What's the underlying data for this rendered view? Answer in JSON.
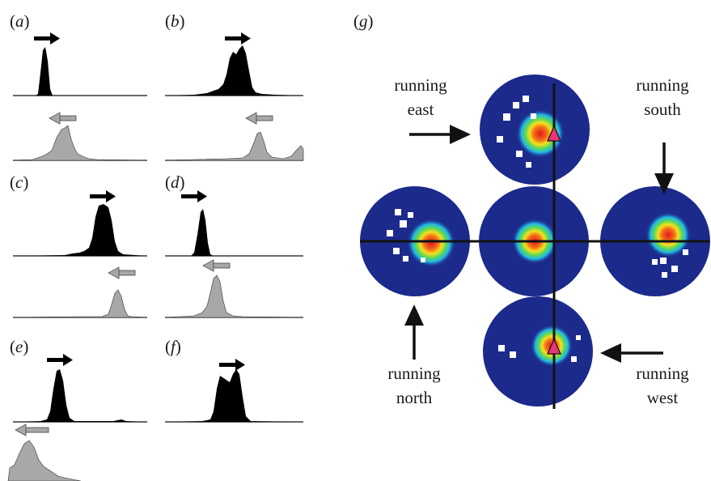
{
  "panels": {
    "a": {
      "open": "(",
      "letter": "a",
      "close": ")"
    },
    "b": {
      "open": "(",
      "letter": "b",
      "close": ")"
    },
    "c": {
      "open": "(",
      "letter": "c",
      "close": ")"
    },
    "d": {
      "open": "(",
      "letter": "d",
      "close": ")"
    },
    "e": {
      "open": "(",
      "letter": "e",
      "close": ")"
    },
    "f": {
      "open": "(",
      "letter": "f",
      "close": ")"
    },
    "g": {
      "open": "(",
      "letter": "g",
      "close": ")"
    }
  },
  "annotations": {
    "east": {
      "line1": "running",
      "line2": "east"
    },
    "south": {
      "line1": "running",
      "line2": "south"
    },
    "north": {
      "line1": "running",
      "line2": "north"
    },
    "west": {
      "line1": "running",
      "line2": "west"
    }
  },
  "colors": {
    "outbound_fill": "#000000",
    "return_fill": "#a8a8a8",
    "map_background": "#1c2a8c",
    "peak_core": "#e8141e",
    "marker": "#e8367a"
  }
}
